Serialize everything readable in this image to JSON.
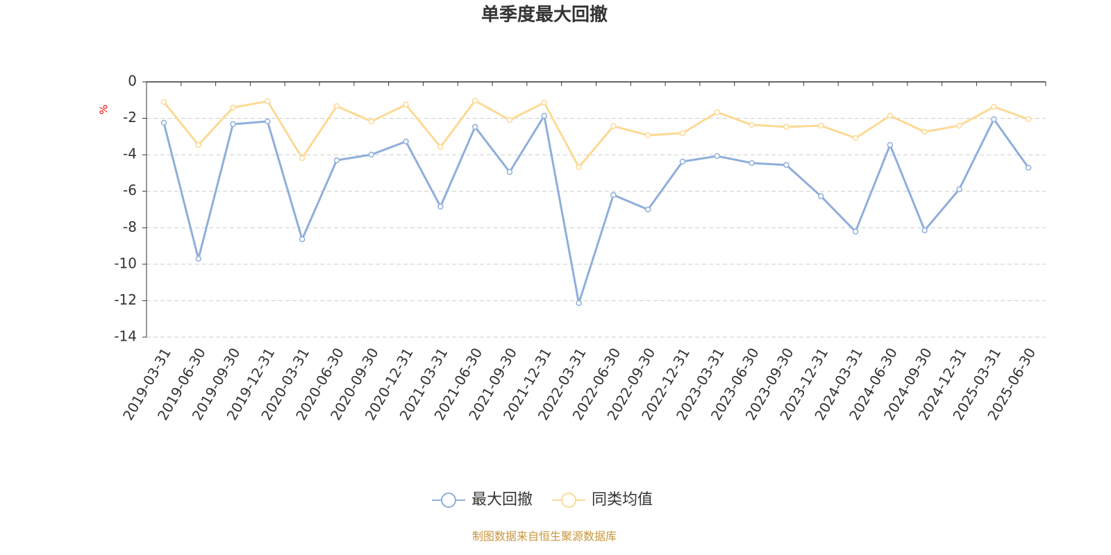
{
  "chart_data": {
    "type": "line",
    "title": "单季度最大回撤",
    "y_label": "%",
    "categories": [
      "2019-03-31",
      "2019-06-30",
      "2019-09-30",
      "2019-12-31",
      "2020-03-31",
      "2020-06-30",
      "2020-09-30",
      "2020-12-31",
      "2021-03-31",
      "2021-06-30",
      "2021-09-30",
      "2021-12-31",
      "2022-03-31",
      "2022-06-30",
      "2022-09-30",
      "2022-12-31",
      "2023-03-31",
      "2023-06-30",
      "2023-09-30",
      "2023-12-31",
      "2024-03-31",
      "2024-06-30",
      "2024-09-30",
      "2024-12-31",
      "2025-03-31",
      "2025-06-30"
    ],
    "series": [
      {
        "name": "最大回撤",
        "color": "#8eaedb",
        "values": [
          -2.24,
          -9.7,
          -2.32,
          -2.17,
          -8.63,
          -4.3,
          -3.99,
          -3.27,
          -6.84,
          -2.47,
          -4.94,
          -1.86,
          -12.13,
          -6.2,
          -7.0,
          -4.37,
          -4.07,
          -4.45,
          -4.56,
          -6.27,
          -8.21,
          -3.46,
          -8.14,
          -5.89,
          -2.05,
          -4.71
        ]
      },
      {
        "name": "同类均值",
        "color": "#fdd993",
        "values": [
          -1.1,
          -3.46,
          -1.41,
          -1.06,
          -4.18,
          -1.33,
          -2.17,
          -1.25,
          -3.57,
          -1.03,
          -2.09,
          -1.14,
          -4.68,
          -2.43,
          -2.93,
          -2.81,
          -1.67,
          -2.36,
          -2.47,
          -2.4,
          -3.08,
          -1.86,
          -2.74,
          -2.4,
          -1.37,
          -2.05
        ]
      }
    ],
    "ylim": [
      -14,
      0
    ],
    "yticks": [
      0,
      -2,
      -4,
      -6,
      -8,
      -10,
      -12,
      -14
    ],
    "grid": true,
    "source": "制图数据来自恒生聚源数据库"
  }
}
